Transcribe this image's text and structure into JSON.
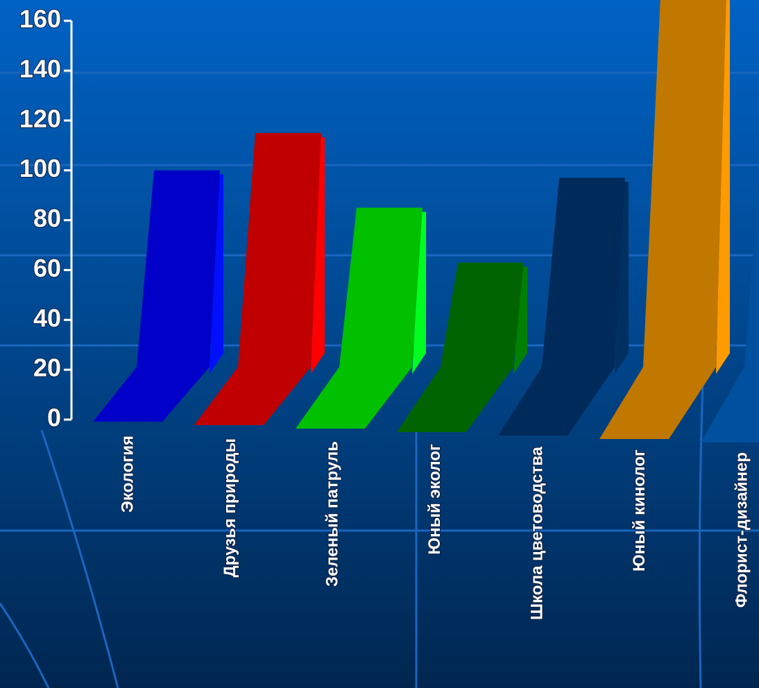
{
  "chart_data": {
    "type": "bar",
    "categories": [
      "Экология",
      "Друзья природы",
      "Зеленый патруль",
      "Юный эколог",
      "Школа цветоводства",
      "Юный кинолог",
      "Флорист-дизайнер"
    ],
    "values": [
      100,
      115,
      85,
      63,
      97,
      170,
      112
    ],
    "colors": [
      "#0000c8",
      "#c00000",
      "#00c000",
      "#006400",
      "#002a5a",
      "#c07800",
      "#0050a0"
    ],
    "side_colors": [
      "#0010ff",
      "#ff0000",
      "#00ff20",
      "#008000",
      "#003060",
      "#ff9a00",
      "#0058b0"
    ],
    "ylim": [
      0,
      160
    ],
    "yticks": [
      0,
      20,
      40,
      60,
      80,
      100,
      120,
      140,
      160
    ]
  }
}
